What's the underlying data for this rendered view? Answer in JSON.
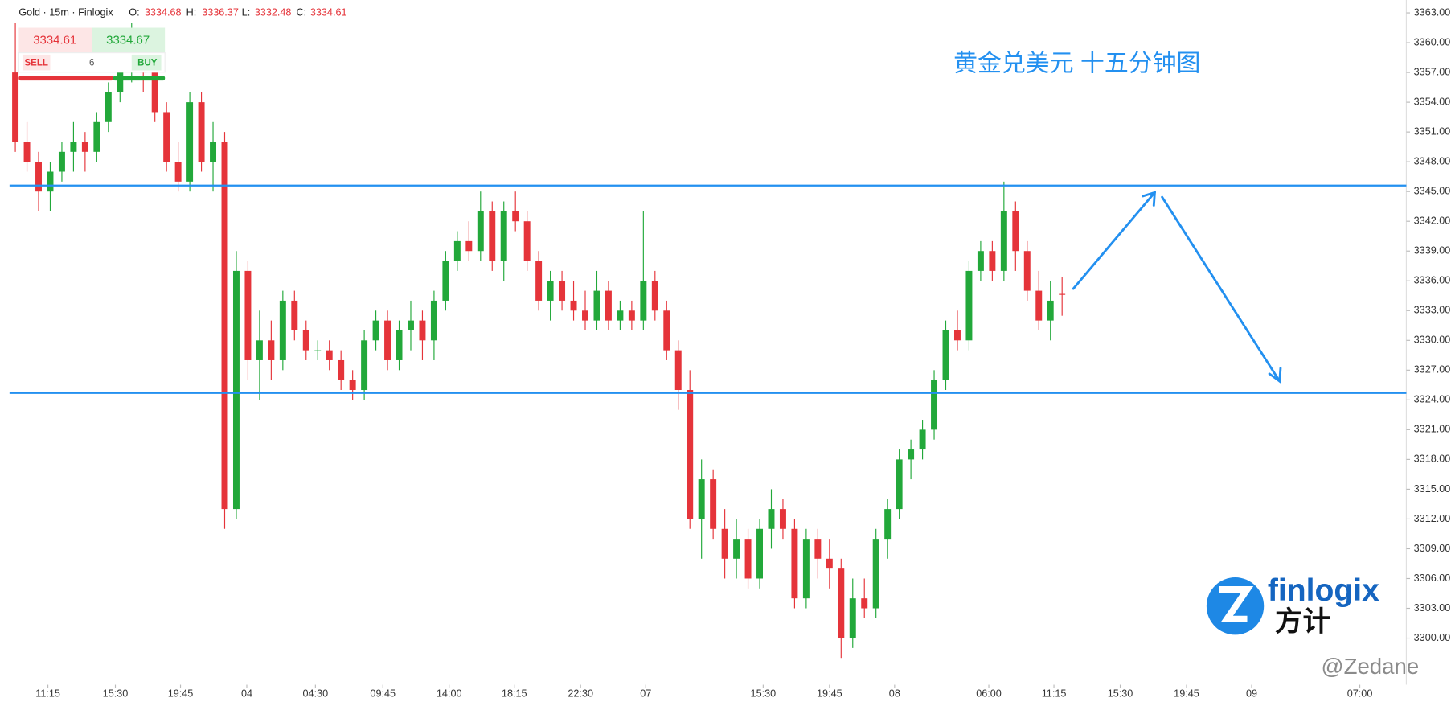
{
  "header": {
    "symbol": "Gold · 15m · Finlogix",
    "o_label": "O:",
    "h_label": "H:",
    "l_label": "L:",
    "c_label": "C:"
  },
  "trade": {
    "sell_price": "3334.61",
    "buy_price": "3334.67",
    "sell": "SELL",
    "buy": "BUY",
    "quantity": "6"
  },
  "branding": {
    "logo": "finlogix",
    "logo_cn": "方计",
    "watermark": "@Zedane"
  },
  "chart_data": {
    "type": "candlestick",
    "title": "黄金兑美元 十五分钟图",
    "up_color": "#22a83a",
    "down_color": "#e5343a",
    "candles": {
      "open": [
        3357,
        3350,
        3348,
        3345,
        3347,
        3349,
        3350,
        3349,
        3352,
        3355,
        3358,
        3359,
        3357,
        3353,
        3348,
        3346,
        3354,
        3348,
        3350,
        3313,
        3337,
        3328,
        3330,
        3328,
        3334,
        3331,
        3329,
        3329,
        3328,
        3326,
        3325,
        3330,
        3332,
        3328,
        3331,
        3332,
        3330,
        3334,
        3338,
        3340,
        3339,
        3343,
        3338,
        3343,
        3342,
        3338,
        3334,
        3336,
        3334,
        3333,
        3332,
        3335,
        3332,
        3333,
        3332,
        3336,
        3333,
        3329,
        3325,
        3312,
        3316,
        3311,
        3308,
        3310,
        3306,
        3311,
        3313,
        3311,
        3304,
        3310,
        3308,
        3307,
        3300,
        3304,
        3303,
        3310,
        3313,
        3318,
        3319,
        3321,
        3326,
        3331,
        3330,
        3337,
        3339,
        3337,
        3343,
        3339,
        3335,
        3332,
        3334.68
      ],
      "high": [
        3362,
        3352,
        3349,
        3348,
        3350,
        3352,
        3351,
        3353,
        3356,
        3360,
        3362,
        3360,
        3358,
        3354,
        3350,
        3355,
        3355,
        3352,
        3351,
        3339,
        3338,
        3333,
        3332,
        3335,
        3335,
        3332,
        3330,
        3330,
        3329,
        3327,
        3331,
        3333,
        3333,
        3332,
        3334,
        3333,
        3335,
        3339,
        3341,
        3342,
        3345,
        3344,
        3344,
        3345,
        3343,
        3339,
        3337,
        3337,
        3336,
        3335,
        3337,
        3336,
        3334,
        3334,
        3343,
        3337,
        3334,
        3330,
        3327,
        3318,
        3317,
        3313,
        3312,
        3311,
        3312,
        3315,
        3314,
        3312,
        3311,
        3311,
        3310,
        3308,
        3306,
        3306,
        3311,
        3314,
        3319,
        3320,
        3322,
        3327,
        3332,
        3333,
        3338,
        3340,
        3340,
        3346,
        3344,
        3340,
        3337,
        3336,
        3336.37
      ],
      "low": [
        3349,
        3347,
        3343,
        3343,
        3346,
        3347,
        3347,
        3348,
        3351,
        3354,
        3356,
        3355,
        3352,
        3347,
        3345,
        3345,
        3347,
        3345,
        3311,
        3312,
        3326,
        3324,
        3326,
        3327,
        3330,
        3328,
        3328,
        3327,
        3325,
        3324,
        3324,
        3329,
        3327,
        3327,
        3329,
        3328,
        3328,
        3333,
        3337,
        3338,
        3338,
        3337,
        3336,
        3341,
        3337,
        3333,
        3332,
        3333,
        3332,
        3331,
        3331,
        3331,
        3331,
        3331,
        3331,
        3332,
        3328,
        3323,
        3311,
        3308,
        3310,
        3306,
        3306,
        3305,
        3305,
        3309,
        3310,
        3303,
        3303,
        3306,
        3305,
        3298,
        3299,
        3302,
        3302,
        3308,
        3312,
        3316,
        3318,
        3320,
        3325,
        3329,
        3329,
        3336,
        3336,
        3336,
        3337,
        3334,
        3331,
        3330,
        3332.48
      ],
      "close": [
        3350,
        3348,
        3345,
        3347,
        3349,
        3350,
        3349,
        3352,
        3355,
        3358,
        3359,
        3357,
        3353,
        3348,
        3346,
        3354,
        3348,
        3350,
        3313,
        3337,
        3328,
        3330,
        3328,
        3334,
        3331,
        3329,
        3329,
        3328,
        3326,
        3325,
        3330,
        3332,
        3328,
        3331,
        3332,
        3330,
        3334,
        3338,
        3340,
        3339,
        3343,
        3338,
        3343,
        3342,
        3338,
        3334,
        3336,
        3334,
        3333,
        3332,
        3335,
        3332,
        3333,
        3332,
        3336,
        3333,
        3329,
        3325,
        3312,
        3316,
        3311,
        3308,
        3310,
        3306,
        3311,
        3313,
        3311,
        3304,
        3310,
        3308,
        3307,
        3300,
        3304,
        3303,
        3310,
        3313,
        3318,
        3319,
        3321,
        3326,
        3331,
        3330,
        3337,
        3339,
        3337,
        3343,
        3339,
        3335,
        3332,
        3334,
        3334.61
      ]
    },
    "hlines": {
      "values": [
        3345.6,
        3324.7
      ],
      "color": "#2390f0"
    },
    "xlim": [
      -0.5,
      119.6
    ],
    "xticks": [
      {
        "value": 2.8,
        "label": "11:15"
      },
      {
        "value": 8.6,
        "label": "15:30"
      },
      {
        "value": 14.2,
        "label": "19:45"
      },
      {
        "value": 19.9,
        "label": "04"
      },
      {
        "value": 25.8,
        "label": "04:30"
      },
      {
        "value": 31.6,
        "label": "09:45"
      },
      {
        "value": 37.3,
        "label": "14:00"
      },
      {
        "value": 42.9,
        "label": "18:15"
      },
      {
        "value": 48.6,
        "label": "22:30"
      },
      {
        "value": 54.2,
        "label": "07"
      },
      {
        "value": 64.3,
        "label": "15:30"
      },
      {
        "value": 70.0,
        "label": "19:45"
      },
      {
        "value": 75.6,
        "label": "08"
      },
      {
        "value": 83.7,
        "label": "06:00"
      },
      {
        "value": 89.3,
        "label": "11:15"
      },
      {
        "value": 95.0,
        "label": "15:30"
      },
      {
        "value": 100.7,
        "label": "19:45"
      },
      {
        "value": 106.3,
        "label": "09"
      },
      {
        "value": 115.6,
        "label": "07:00"
      }
    ],
    "ylim": [
      3295.3,
      3364.3
    ],
    "yticks": [
      {
        "value": 3300,
        "label": "3300.00"
      },
      {
        "value": 3303,
        "label": "3303.00"
      },
      {
        "value": 3306,
        "label": "3306.00"
      },
      {
        "value": 3309,
        "label": "3309.00"
      },
      {
        "value": 3312,
        "label": "3312.00"
      },
      {
        "value": 3315,
        "label": "3315.00"
      },
      {
        "value": 3318,
        "label": "3318.00"
      },
      {
        "value": 3321,
        "label": "3321.00"
      },
      {
        "value": 3324,
        "label": "3324.00"
      },
      {
        "value": 3327,
        "label": "3327.00"
      },
      {
        "value": 3330,
        "label": "3330.00"
      },
      {
        "value": 3333,
        "label": "3333.00"
      },
      {
        "value": 3336,
        "label": "3336.00"
      },
      {
        "value": 3339,
        "label": "3339.00"
      },
      {
        "value": 3342,
        "label": "3342.00"
      },
      {
        "value": 3345,
        "label": "3345.00"
      },
      {
        "value": 3348,
        "label": "3348.00"
      },
      {
        "value": 3351,
        "label": "3351.00"
      },
      {
        "value": 3354,
        "label": "3354.00"
      },
      {
        "value": 3357,
        "label": "3357.00"
      },
      {
        "value": 3360,
        "label": "3360.00"
      },
      {
        "value": 3363,
        "label": "3363.00"
      }
    ]
  }
}
